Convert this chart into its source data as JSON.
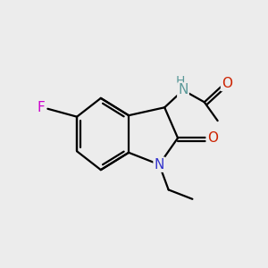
{
  "bg_color": "#ececec",
  "bond_color": "#000000",
  "bond_width": 1.6,
  "atom_colors": {
    "N_amide": "#5b9999",
    "N_ring": "#3333cc",
    "O": "#cc2200",
    "F": "#cc00cc",
    "C": "#000000",
    "H": "#5b9999"
  },
  "font_size": 11
}
